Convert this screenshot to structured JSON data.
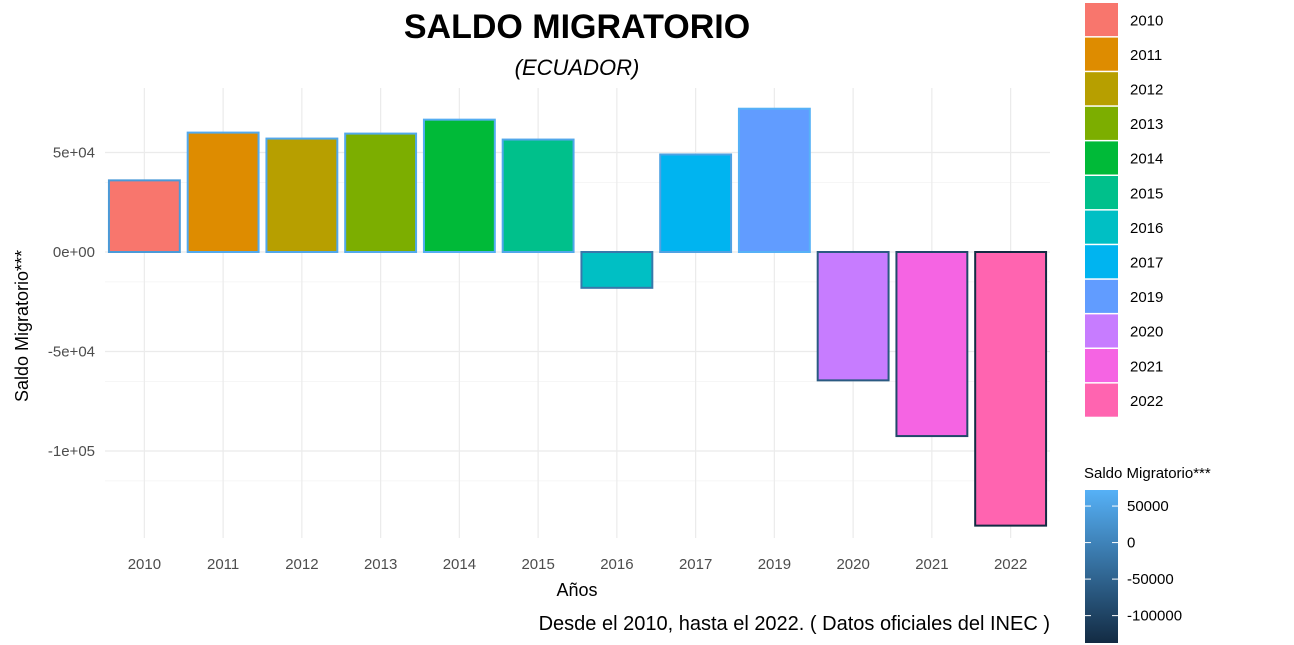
{
  "chart_data": {
    "type": "bar",
    "title": "SALDO MIGRATORIO",
    "subtitle": "(ECUADOR)",
    "caption": "Desde el 2010, hasta el 2022. ( Datos oficiales del INEC )",
    "xlabel": "Años",
    "ylabel": "Saldo Migratorio***",
    "categories": [
      "2010",
      "2011",
      "2012",
      "2013",
      "2014",
      "2015",
      "2016",
      "2017",
      "2019",
      "2020",
      "2021",
      "2022"
    ],
    "values": [
      36000,
      60000,
      57000,
      59500,
      66500,
      56500,
      -18000,
      49000,
      72000,
      -64500,
      -92500,
      -137500
    ],
    "fill_colors": [
      "#F8766D",
      "#DE8C00",
      "#B79F00",
      "#7CAE00",
      "#00BA38",
      "#00C08B",
      "#00BFC4",
      "#00B4F0",
      "#619CFF",
      "#C77CFF",
      "#F564E3",
      "#FF64B0"
    ],
    "ylim": [
      -140000,
      82000
    ],
    "yticks": [
      -100000,
      -50000,
      0,
      50000
    ],
    "ytick_labels": [
      "-1e+05",
      "-5e+04",
      "0e+00",
      "5e+04"
    ],
    "grid": true,
    "legend_fill": {
      "position": "right-top",
      "items": [
        "2010",
        "2011",
        "2012",
        "2013",
        "2014",
        "2015",
        "2016",
        "2017",
        "2019",
        "2020",
        "2021",
        "2022"
      ]
    },
    "legend_color": {
      "title": "Saldo Migratorio***",
      "position": "right-bottom",
      "range": [
        -137500,
        72000
      ],
      "colors": [
        "#132B43",
        "#56B1F7"
      ],
      "breaks": [
        50000,
        0,
        -50000,
        -100000
      ],
      "labels": [
        "50000",
        "0",
        "-50000",
        "-100000"
      ]
    }
  }
}
